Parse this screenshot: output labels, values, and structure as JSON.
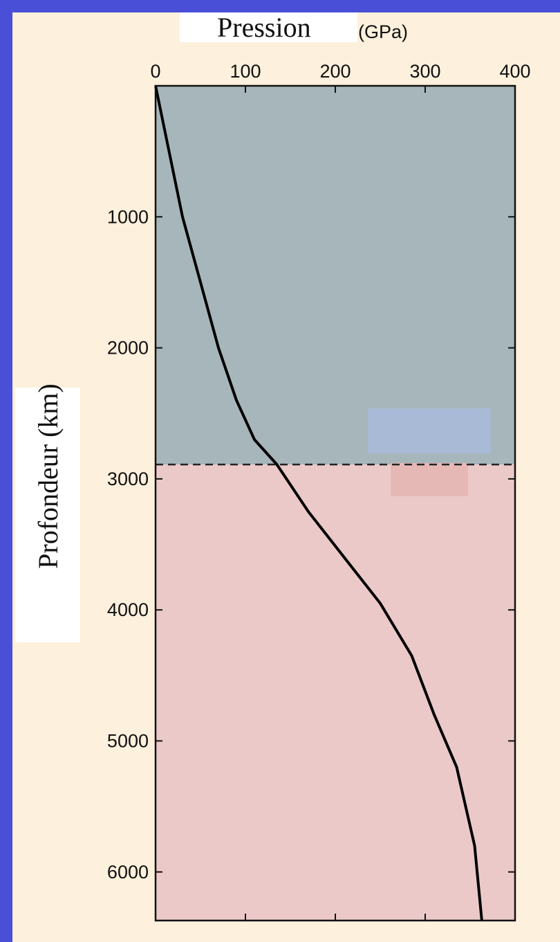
{
  "colors": {
    "frame": "#4a4fd8",
    "background": "#fdf0dc",
    "upper_region": "#a7b6bb",
    "lower_region": "#ebc9c9",
    "upper_legend_patch": "#a8bad6",
    "lower_legend_patch": "#e6b8b5",
    "curve": "#000000"
  },
  "chart_data": {
    "type": "line",
    "title": "",
    "xlabel": "Pression",
    "xlabel_unit": "(GPa)",
    "ylabel": "Profondeur (km)",
    "x_axis_position": "top",
    "y_axis_inverted": true,
    "xlim": [
      0,
      400
    ],
    "ylim": [
      0,
      6371
    ],
    "x_ticks": [
      0,
      100,
      200,
      300,
      400
    ],
    "x_tick_labels": [
      "0",
      "100",
      "200",
      "300",
      "400"
    ],
    "y_ticks": [
      1000,
      2000,
      3000,
      4000,
      5000,
      6000
    ],
    "y_tick_labels": [
      "1000",
      "2000",
      "3000",
      "4000",
      "5000",
      "6000"
    ],
    "grid": false,
    "boundary": {
      "depth": 2890,
      "style": "dashed"
    },
    "regions": [
      {
        "from_depth": 0,
        "to_depth": 2890,
        "color": "#a7b6bb"
      },
      {
        "from_depth": 2890,
        "to_depth": 6371,
        "color": "#ebc9c9"
      }
    ],
    "series": [
      {
        "x": [
          0,
          15,
          30,
          50,
          70,
          90,
          110,
          135,
          170,
          210,
          250,
          285,
          310,
          335,
          355,
          363
        ],
        "y": [
          0,
          500,
          1000,
          1500,
          2000,
          2400,
          2700,
          2890,
          3250,
          3600,
          3950,
          4350,
          4800,
          5200,
          5800,
          6371
        ]
      }
    ]
  }
}
